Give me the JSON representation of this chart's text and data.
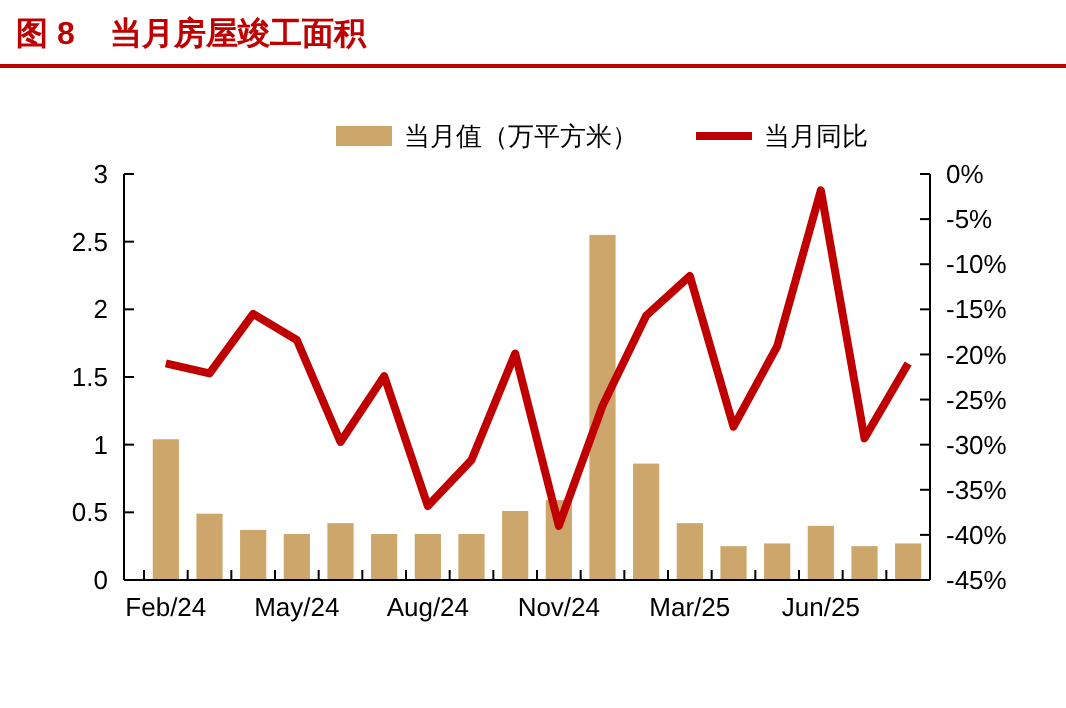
{
  "chart_data": {
    "type": "bar",
    "title": "图 8    当月房屋竣工面积",
    "categories": [
      "Feb/24",
      null,
      null,
      "May/24",
      null,
      null,
      "Aug/24",
      null,
      null,
      "Nov/24",
      null,
      null,
      "Mar/25",
      null,
      null,
      "Jun/25",
      null,
      null
    ],
    "series": [
      {
        "name": "当月值（万平方米）",
        "color": "#cca66a",
        "values": [
          1.04,
          0.49,
          0.37,
          0.34,
          0.42,
          0.34,
          0.34,
          0.34,
          0.51,
          0.59,
          2.55,
          0.86,
          0.42,
          0.25,
          0.27,
          0.4,
          0.25,
          0.27
        ]
      },
      {
        "name": "当月同比",
        "type": "line",
        "axis": "y2",
        "color": "#c00000",
        "values": [
          -21,
          -22.1,
          -15.5,
          -18.4,
          -29.7,
          -22.4,
          -36.8,
          -31.7,
          -19.9,
          -39,
          -25.7,
          -15.7,
          -11.3,
          -28,
          -19.1,
          -1.8,
          -29.3,
          -21
        ]
      }
    ],
    "ylim": [
      0,
      3
    ],
    "yticks": [
      0,
      {
        "value": 0.5,
        "label": "0.5"
      },
      1,
      {
        "value": 1.5,
        "label": "1.5"
      },
      2,
      {
        "value": 2.5,
        "label": "2.5"
      },
      3
    ],
    "y2lim": [
      -45,
      0
    ],
    "y2ticks": [
      {
        "value": 0,
        "label": "0%"
      },
      {
        "value": -5,
        "label": "-5%"
      },
      {
        "value": -10,
        "label": "-10%"
      },
      {
        "value": -15,
        "label": "-15%"
      },
      {
        "value": -20,
        "label": "-20%"
      },
      {
        "value": -25,
        "label": "-25%"
      },
      {
        "value": -30,
        "label": "-30%"
      },
      {
        "value": -35,
        "label": "-35%"
      },
      {
        "value": -40,
        "label": "-40%"
      },
      {
        "value": -45,
        "label": "-45%"
      }
    ],
    "legend": "top",
    "grid": false
  }
}
